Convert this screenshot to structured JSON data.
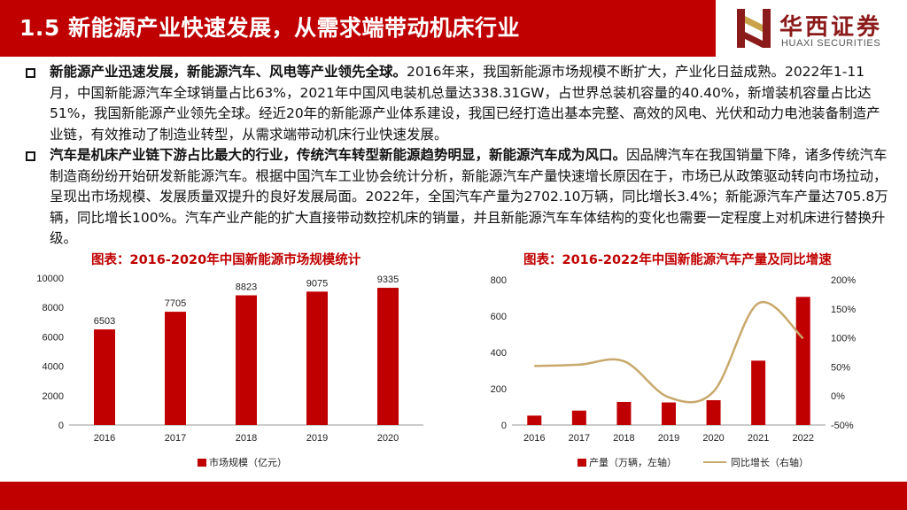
{
  "header": {
    "title": "1.5 新能源产业快速发展，从需求端带动机床行业"
  },
  "logo": {
    "cn": "华西证券",
    "en": "HUAXI SECURITIES"
  },
  "paragraphs": [
    {
      "bold": "新能源产业迅速发展，新能源汽车、风电等产业领先全球。",
      "text": "2016年来，我国新能源市场规模不断扩大，产业化日益成熟。2022年1-11月，中国新能源汽车全球销量占比63%，2021年中国风电装机总量达338.31GW，占世界总装机容量的40.40%，新增装机容量占比达51%，我国新能源产业领先全球。经近20年的新能源产业体系建设，我国已经打造出基本完整、高效的风电、光伏和动力电池装备制造产业链，有效推动了制造业转型，从需求端带动机床行业快速发展。"
    },
    {
      "bold": "汽车是机床产业链下游占比最大的行业，传统汽车转型新能源趋势明显，新能源汽车成为风口。",
      "text": "因品牌汽车在我国销量下降，诸多传统汽车制造商纷纷开始研发新能源汽车。根据中国汽车工业协会统计分析，新能源汽车产量快速增长原因在于，市场已从政策驱动转向市场拉动，呈现出市场规模、发展质量双提升的良好发展局面。2022年，全国汽车产量为2702.10万辆，同比增长3.4%；新能源汽车产量达705.8万辆，同比增长100%。汽车产业产能的扩大直接带动数控机床的销量，并且新能源汽车车体结构的变化也需要一定程度上对机床进行替换升级。"
    }
  ],
  "chart_data": [
    {
      "type": "bar",
      "title": "图表：2016-2020年中国新能源市场规模统计",
      "categories": [
        "2016",
        "2017",
        "2018",
        "2019",
        "2020"
      ],
      "series": [
        {
          "name": "市场规模（亿元）",
          "values": [
            6503,
            7705,
            8823,
            9075,
            9335
          ],
          "color": "#c00000"
        }
      ],
      "data_labels": [
        "6503",
        "7705",
        "8823",
        "9075",
        "9335"
      ],
      "ylim": [
        0,
        10000
      ],
      "yticks": [
        "0",
        "2000",
        "4000",
        "6000",
        "8000",
        "10000"
      ],
      "grid": false,
      "legend": "bottom"
    },
    {
      "type": "bar",
      "title": "图表：2016-2022年中国新能源汽车产量及同比增速",
      "categories": [
        "2016",
        "2017",
        "2018",
        "2019",
        "2020",
        "2021",
        "2022"
      ],
      "series": [
        {
          "name": "产量（万辆，左轴）",
          "type": "bar",
          "axis": "left",
          "values": [
            51.7,
            79.4,
            127.0,
            124.2,
            136.6,
            354.5,
            705.8
          ],
          "color": "#c00000"
        },
        {
          "name": "同比增长（右轴）",
          "type": "line",
          "axis": "right",
          "values": [
            51.7,
            53.8,
            59.9,
            -2.3,
            7.5,
            159.5,
            99.1
          ],
          "color": "#c8a86b"
        }
      ],
      "ylim_left": [
        0,
        800
      ],
      "yticks_left": [
        "0",
        "200",
        "400",
        "600",
        "800"
      ],
      "ylim_right": [
        -50,
        200
      ],
      "yticks_right": [
        "-50%",
        "0%",
        "50%",
        "100%",
        "150%",
        "200%"
      ],
      "grid": false,
      "legend": "bottom"
    }
  ],
  "colors": {
    "brand_red": "#c00000",
    "line_gold": "#c8a86b",
    "logo_dark_red": "#8b1a1a"
  }
}
